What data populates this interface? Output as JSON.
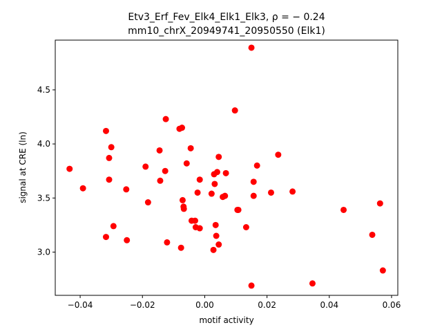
{
  "chart_data": {
    "type": "scatter",
    "title_line1": "Etv3_Erf_Fev_Elk4_Elk1_Elk3, ρ = − 0.24",
    "title_line2": "mm10_chrX_20949741_20950550 (Elk1)",
    "xlabel": "motif activity",
    "ylabel": "signal at CRE (ln)",
    "xlim": [
      -0.048,
      0.062
    ],
    "ylim": [
      2.6,
      4.96
    ],
    "xticks": [
      -0.04,
      -0.02,
      0.0,
      0.02,
      0.04,
      0.06
    ],
    "xtick_labels": [
      "−0.04",
      "−0.02",
      "0.00",
      "0.02",
      "0.04",
      "0.06"
    ],
    "yticks": [
      3.0,
      3.5,
      4.0,
      4.5
    ],
    "ytick_labels": [
      "3.0",
      "3.5",
      "4.0",
      "4.5"
    ],
    "grid": false,
    "marker_color": "#ff0000",
    "points": [
      {
        "x": -0.0434,
        "y": 3.77
      },
      {
        "x": -0.0391,
        "y": 3.59
      },
      {
        "x": -0.0317,
        "y": 4.12
      },
      {
        "x": -0.03,
        "y": 3.97
      },
      {
        "x": -0.0307,
        "y": 3.87
      },
      {
        "x": -0.0307,
        "y": 3.67
      },
      {
        "x": -0.0293,
        "y": 3.24
      },
      {
        "x": -0.0317,
        "y": 3.14
      },
      {
        "x": -0.0252,
        "y": 3.58
      },
      {
        "x": -0.025,
        "y": 3.11
      },
      {
        "x": -0.019,
        "y": 3.79
      },
      {
        "x": -0.0182,
        "y": 3.46
      },
      {
        "x": -0.0145,
        "y": 3.94
      },
      {
        "x": -0.0143,
        "y": 3.66
      },
      {
        "x": -0.0125,
        "y": 4.23
      },
      {
        "x": -0.0127,
        "y": 3.75
      },
      {
        "x": -0.0121,
        "y": 3.09
      },
      {
        "x": -0.0081,
        "y": 4.14
      },
      {
        "x": -0.0073,
        "y": 4.15
      },
      {
        "x": -0.0076,
        "y": 3.04
      },
      {
        "x": -0.0071,
        "y": 3.48
      },
      {
        "x": -0.0068,
        "y": 3.42
      },
      {
        "x": -0.0067,
        "y": 3.4
      },
      {
        "x": -0.0058,
        "y": 3.82
      },
      {
        "x": -0.0045,
        "y": 3.96
      },
      {
        "x": -0.0042,
        "y": 3.29
      },
      {
        "x": -0.0031,
        "y": 3.29
      },
      {
        "x": -0.0029,
        "y": 3.23
      },
      {
        "x": -0.0023,
        "y": 3.55
      },
      {
        "x": -0.0016,
        "y": 3.67
      },
      {
        "x": -0.0016,
        "y": 3.22
      },
      {
        "x": 0.0022,
        "y": 3.54
      },
      {
        "x": 0.0028,
        "y": 3.02
      },
      {
        "x": 0.003,
        "y": 3.72
      },
      {
        "x": 0.0032,
        "y": 3.63
      },
      {
        "x": 0.0035,
        "y": 3.25
      },
      {
        "x": 0.0037,
        "y": 3.15
      },
      {
        "x": 0.004,
        "y": 3.74
      },
      {
        "x": 0.0045,
        "y": 3.88
      },
      {
        "x": 0.0045,
        "y": 3.07
      },
      {
        "x": 0.0058,
        "y": 3.51
      },
      {
        "x": 0.0065,
        "y": 3.52
      },
      {
        "x": 0.0068,
        "y": 3.73
      },
      {
        "x": 0.0097,
        "y": 4.31
      },
      {
        "x": 0.0105,
        "y": 3.39
      },
      {
        "x": 0.0108,
        "y": 3.39
      },
      {
        "x": 0.0133,
        "y": 3.23
      },
      {
        "x": 0.015,
        "y": 4.89
      },
      {
        "x": 0.015,
        "y": 2.69
      },
      {
        "x": 0.0157,
        "y": 3.65
      },
      {
        "x": 0.0157,
        "y": 3.52
      },
      {
        "x": 0.0168,
        "y": 3.8
      },
      {
        "x": 0.0213,
        "y": 3.55
      },
      {
        "x": 0.0236,
        "y": 3.9
      },
      {
        "x": 0.0282,
        "y": 3.56
      },
      {
        "x": 0.0346,
        "y": 2.71
      },
      {
        "x": 0.0446,
        "y": 3.39
      },
      {
        "x": 0.0538,
        "y": 3.16
      },
      {
        "x": 0.0563,
        "y": 3.45
      },
      {
        "x": 0.0572,
        "y": 2.83
      }
    ]
  }
}
